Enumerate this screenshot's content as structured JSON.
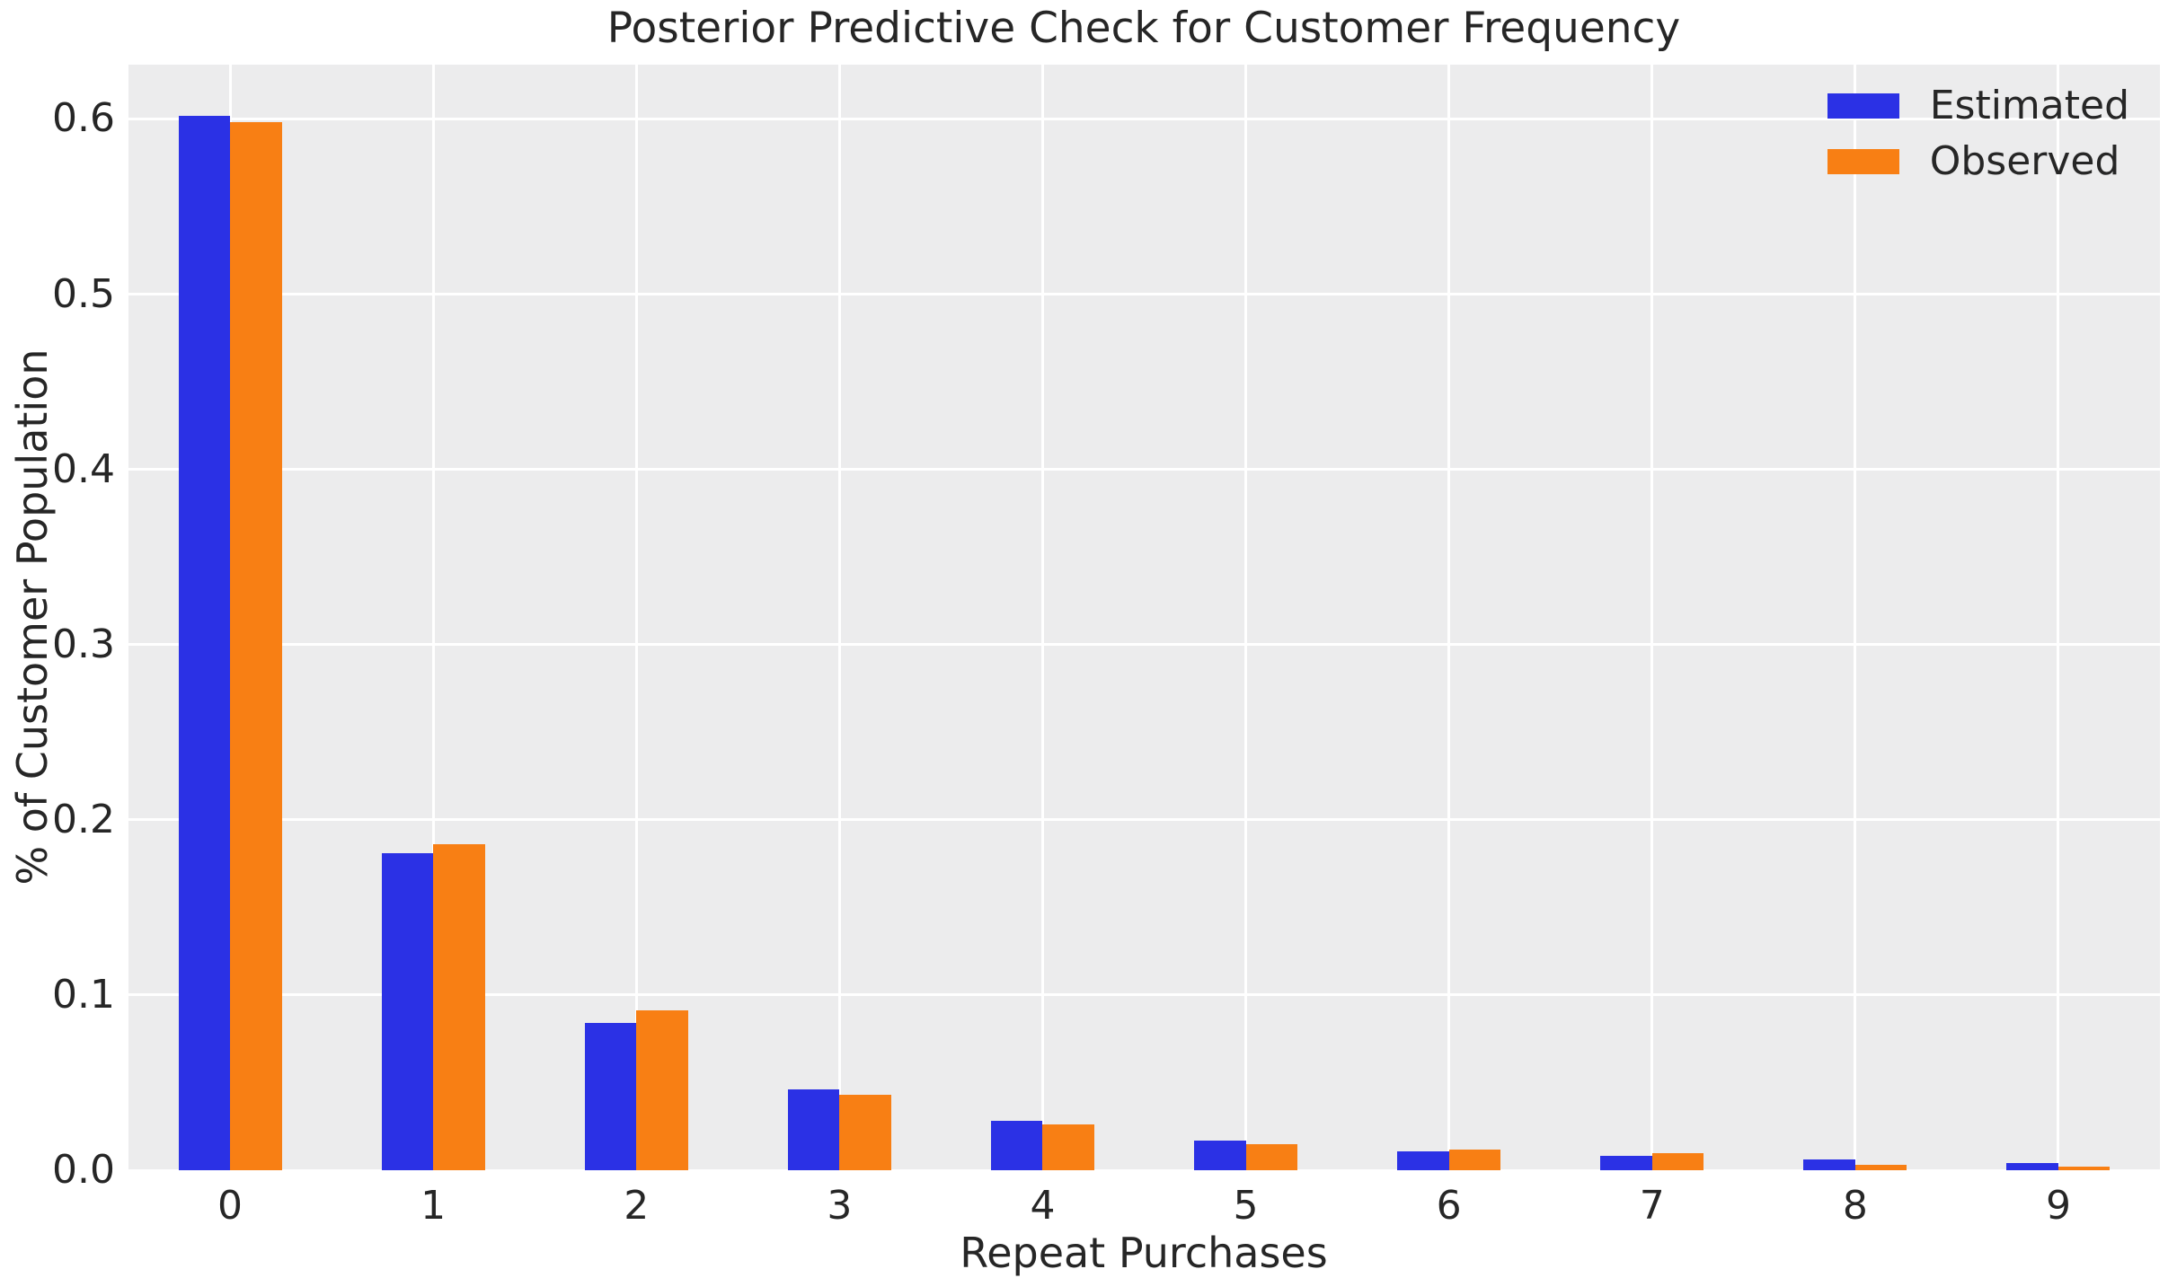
{
  "chart_data": {
    "type": "bar",
    "title": "Posterior Predictive Check for Customer Frequency",
    "xlabel": "Repeat Purchases",
    "ylabel": "% of Customer Population",
    "categories": [
      "0",
      "1",
      "2",
      "3",
      "4",
      "5",
      "6",
      "7",
      "8",
      "9"
    ],
    "series": [
      {
        "name": "Estimated",
        "color": "#2b31e5",
        "values": [
          0.602,
          0.181,
          0.084,
          0.046,
          0.028,
          0.017,
          0.011,
          0.008,
          0.006,
          0.004
        ]
      },
      {
        "name": "Observed",
        "color": "#f87f14",
        "values": [
          0.598,
          0.186,
          0.091,
          0.043,
          0.026,
          0.015,
          0.012,
          0.01,
          0.003,
          0.002
        ]
      }
    ],
    "yticks": [
      0.0,
      0.1,
      0.2,
      0.3,
      0.4,
      0.5,
      0.6
    ],
    "ytick_labels": [
      "0.0",
      "0.1",
      "0.2",
      "0.3",
      "0.4",
      "0.5",
      "0.6"
    ],
    "ylim": [
      0,
      0.631
    ],
    "grid": true,
    "legend_position": "upper right",
    "style": {
      "plot_bg": "#ececed",
      "fig_bg": "#ffffff",
      "grid_color": "#ffffff",
      "text_color": "#262626"
    }
  }
}
